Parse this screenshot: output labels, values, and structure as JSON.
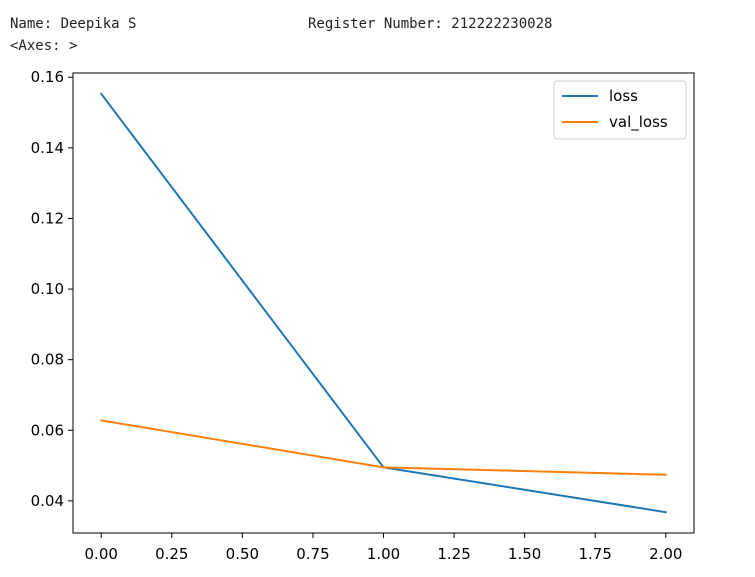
{
  "output": {
    "name_line": "Name: Deepika S",
    "register_line": "Register Number: 212222230028",
    "axes_repr": "<Axes: >"
  },
  "chart_data": {
    "type": "line",
    "x": [
      0,
      1,
      2
    ],
    "series": [
      {
        "name": "loss",
        "values": [
          0.1553,
          0.0495,
          0.0368
        ],
        "color": "#1f77b4"
      },
      {
        "name": "val_loss",
        "values": [
          0.0628,
          0.0495,
          0.0474
        ],
        "color": "#ff7f0e"
      }
    ],
    "xlim": [
      -0.1,
      2.1
    ],
    "ylim": [
      0.0309,
      0.1612
    ],
    "xticks": [
      0.0,
      0.25,
      0.5,
      0.75,
      1.0,
      1.25,
      1.5,
      1.75,
      2.0
    ],
    "xtick_labels": [
      "0.00",
      "0.25",
      "0.50",
      "0.75",
      "1.00",
      "1.25",
      "1.50",
      "1.75",
      "2.00"
    ],
    "yticks": [
      0.04,
      0.06,
      0.08,
      0.1,
      0.12,
      0.14,
      0.16
    ],
    "ytick_labels": [
      "0.04",
      "0.06",
      "0.08",
      "0.10",
      "0.12",
      "0.14",
      "0.16"
    ],
    "grid": false,
    "legend_position": "upper right",
    "title": "",
    "xlabel": "",
    "ylabel": ""
  }
}
